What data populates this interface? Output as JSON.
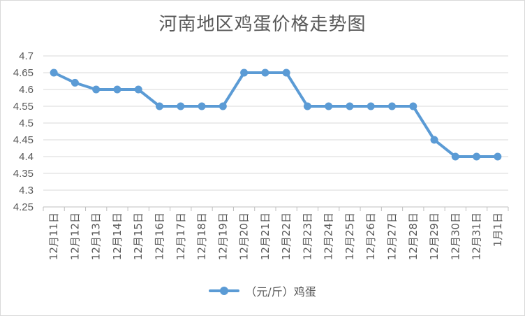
{
  "chart_data": {
    "type": "line",
    "title": "河南地区鸡蛋价格走势图",
    "xlabel": "",
    "ylabel": "",
    "categories": [
      "12月11日",
      "12月12日",
      "12月13日",
      "12月14日",
      "12月15日",
      "12月16日",
      "12月17日",
      "12月18日",
      "12月19日",
      "12月20日",
      "12月21日",
      "12月22日",
      "12月23日",
      "12月24日",
      "12月25日",
      "12月26日",
      "12月27日",
      "12月28日",
      "12月29日",
      "12月30日",
      "12月31日",
      "1月1日"
    ],
    "series": [
      {
        "name": "（元/斤）鸡蛋",
        "color": "#5b9bd5",
        "values": [
          4.65,
          4.62,
          4.6,
          4.6,
          4.6,
          4.55,
          4.55,
          4.55,
          4.55,
          4.65,
          4.65,
          4.65,
          4.55,
          4.55,
          4.55,
          4.55,
          4.55,
          4.55,
          4.45,
          4.4,
          4.4,
          4.4
        ]
      }
    ],
    "ylim": [
      4.25,
      4.7
    ],
    "yticks": [
      "4.25",
      "4.3",
      "4.35",
      "4.4",
      "4.45",
      "4.5",
      "4.55",
      "4.6",
      "4.65",
      "4.7"
    ],
    "grid": true,
    "legend": "bottom"
  }
}
